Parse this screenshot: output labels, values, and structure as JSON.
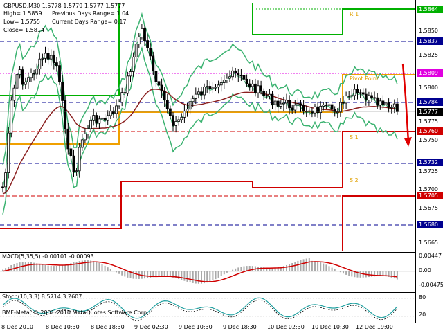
{
  "header": {
    "symbol": "GBPUSD,M30",
    "quote": "1.5778 1.5779 1.5777 1.5777",
    "high": "High= 1.5859",
    "low": "Low= 1.5755",
    "close": "Close= 1.5814",
    "prev_range": "Previous Days Range= 1.04",
    "curr_range": "Current Days Range= 0.17"
  },
  "price_axis": {
    "ticks": [
      "1.5850",
      "1.5825",
      "1.5800",
      "1.5775",
      "1.5750",
      "1.5725",
      "1.5700",
      "1.5675",
      "1.5665"
    ],
    "boxes": [
      {
        "label": "1.5864",
        "bg": "#00b000",
        "fg": "#ffffff"
      },
      {
        "label": "1.5837",
        "bg": "#000090",
        "fg": "#ffffff"
      },
      {
        "label": "1.5809",
        "bg": "#e000e0",
        "fg": "#ffffff"
      },
      {
        "label": "1.5784",
        "bg": "#000090",
        "fg": "#ffffff"
      },
      {
        "label": "1.5777",
        "bg": "#000000",
        "fg": "#ffffff"
      },
      {
        "label": "1.5760",
        "bg": "#d00000",
        "fg": "#ffffff"
      },
      {
        "label": "1.5732",
        "bg": "#000090",
        "fg": "#ffffff"
      },
      {
        "label": "1.5705",
        "bg": "#d00000",
        "fg": "#ffffff"
      },
      {
        "label": "1.5680",
        "bg": "#000090",
        "fg": "#ffffff"
      }
    ]
  },
  "levels": {
    "r1": "R 1",
    "pivot": "Pivot Point",
    "s1": "S 1",
    "s2": "S 2"
  },
  "macd": {
    "title": "MACD(5,35,5) -0.00101 -0.00093",
    "ticks": [
      "0.00447",
      "0.00",
      "-0.00475"
    ]
  },
  "stoch": {
    "title": "Stoch(10,3,3) 8.5714 3.2607",
    "ticks": [
      "80",
      "20"
    ]
  },
  "footer": "BMF-Meta, © 2001-2010 MetaQuotes Software Corp.",
  "time_axis": [
    "8 Dec 2010",
    "8 Dec 10:30",
    "8 Dec 18:30",
    "9 Dec 02:30",
    "9 Dec 10:30",
    "9 Dec 18:30",
    "10 Dec 02:30",
    "10 Dec 10:30",
    "12 Dec 19:00"
  ],
  "colors": {
    "bollinger": "#3cb371",
    "ma": "#8b2020",
    "candles": "#000000",
    "r1": "#00b000",
    "pivot": "#f0a000",
    "support": "#d00000",
    "macd_line": "#d00000",
    "macd_hist": "#a9a9a9",
    "stoch_main": "#20a0a0",
    "stoch_signal": "#000000"
  }
}
